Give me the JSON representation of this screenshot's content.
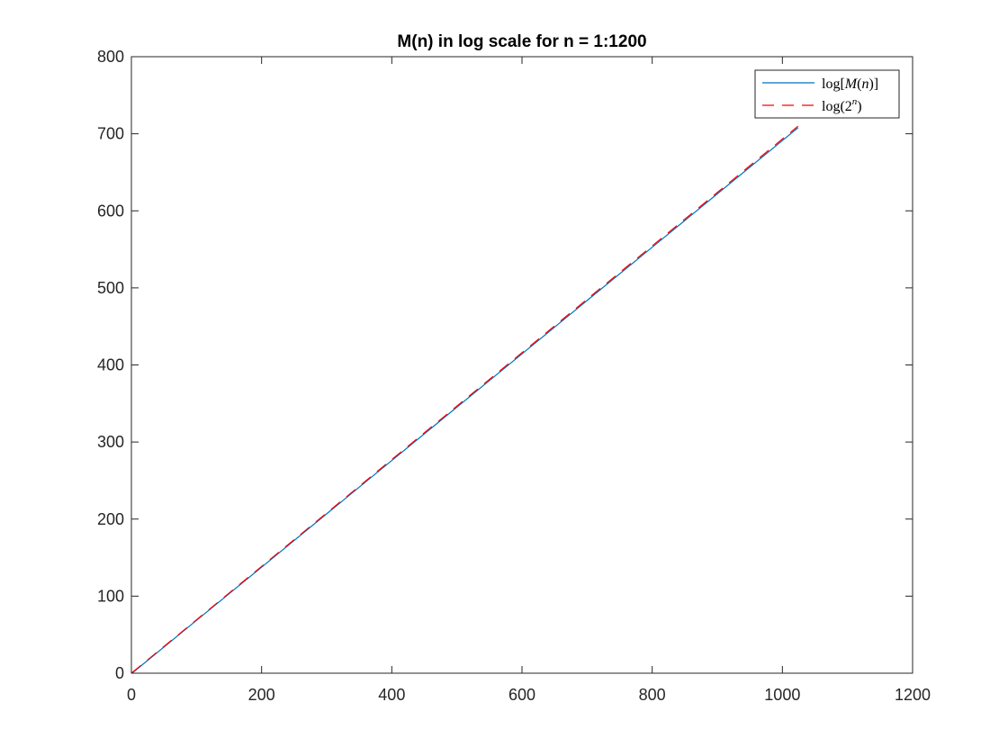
{
  "chart_data": {
    "type": "line",
    "title": "M(n) in log scale for n = 1:1200",
    "xlabel": "",
    "ylabel": "",
    "xlim": [
      0,
      1200
    ],
    "ylim": [
      0,
      800
    ],
    "x_ticks": [
      "0",
      "200",
      "400",
      "600",
      "800",
      "1000",
      "1200"
    ],
    "y_ticks": [
      "0",
      "100",
      "200",
      "300",
      "400",
      "500",
      "600",
      "700",
      "800"
    ],
    "grid": false,
    "legend_position": "top-right",
    "series": [
      {
        "name_base": "log[M(n)]",
        "name_parts": [
          "log[",
          "M",
          "(",
          "n",
          ")]"
        ],
        "color": "#0072BD",
        "dash": "solid",
        "x": [
          1,
          100,
          200,
          300,
          400,
          500,
          600,
          700,
          800,
          900,
          1000,
          1024
        ],
        "y": [
          0,
          68.5,
          137.6,
          206.8,
          276.0,
          345.2,
          414.4,
          483.6,
          552.8,
          622.0,
          691.2,
          707.8
        ]
      },
      {
        "name_base": "log(2n)",
        "name_parts": [
          "log(2",
          "n",
          ")"
        ],
        "color": "#FF0000",
        "dash": "dashed",
        "x": [
          1,
          100,
          200,
          300,
          400,
          500,
          600,
          700,
          800,
          900,
          1000,
          1024
        ],
        "y": [
          0.69,
          69.3,
          138.6,
          207.9,
          277.3,
          346.6,
          415.9,
          485.2,
          554.5,
          623.8,
          693.1,
          709.8
        ]
      }
    ]
  }
}
